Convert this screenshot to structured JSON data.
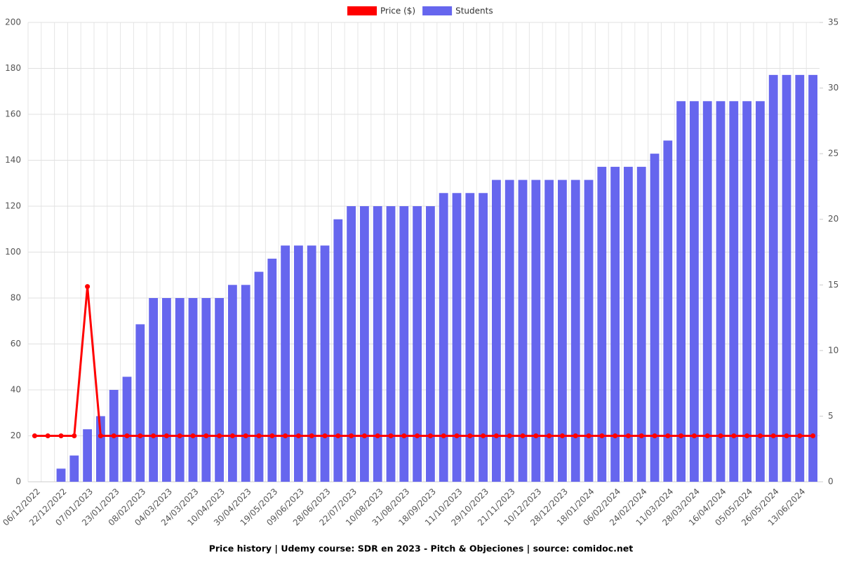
{
  "chart_data": {
    "type": "bar",
    "title": "Price history | Udemy course: SDR en 2023  -   Pitch & Objeciones | source: comidoc.net",
    "categories": [
      "06/12/2022",
      null,
      "22/12/2022",
      null,
      "07/01/2023",
      null,
      "23/01/2023",
      null,
      "08/02/2023",
      null,
      "04/03/2023",
      null,
      "24/03/2023",
      null,
      "10/04/2023",
      null,
      "30/04/2023",
      null,
      "19/05/2023",
      null,
      "09/06/2023",
      null,
      "28/06/2023",
      null,
      "22/07/2023",
      null,
      "10/08/2023",
      null,
      "31/08/2023",
      null,
      "18/09/2023",
      null,
      "11/10/2023",
      null,
      "29/10/2023",
      null,
      "21/11/2023",
      null,
      "10/12/2023",
      null,
      "28/12/2023",
      null,
      "18/01/2024",
      null,
      "06/02/2024",
      null,
      "24/02/2024",
      null,
      "11/03/2024",
      null,
      "28/03/2024",
      null,
      "16/04/2024",
      null,
      "05/05/2024",
      null,
      "26/05/2024",
      null,
      "13/06/2024",
      null
    ],
    "series": [
      {
        "name": "Price ($)",
        "type": "line",
        "color": "#ff0000",
        "axis": "y",
        "values": [
          20,
          20,
          20,
          20,
          85,
          20,
          20,
          20,
          20,
          20,
          20,
          20,
          20,
          20,
          20,
          20,
          20,
          20,
          20,
          20,
          20,
          20,
          20,
          20,
          20,
          20,
          20,
          20,
          20,
          20,
          20,
          20,
          20,
          20,
          20,
          20,
          20,
          20,
          20,
          20,
          20,
          20,
          20,
          20,
          20,
          20,
          20,
          20,
          20,
          20,
          20,
          20,
          20,
          20,
          20,
          20,
          20,
          20,
          20,
          20
        ]
      },
      {
        "name": "Students",
        "type": "bar",
        "color": "#6666ee",
        "axis": "y2",
        "values": [
          0,
          0,
          1,
          2,
          4,
          5,
          7,
          8,
          12,
          14,
          14,
          14,
          14,
          14,
          14,
          15,
          15,
          16,
          17,
          18,
          18,
          18,
          18,
          20,
          21,
          21,
          21,
          21,
          21,
          21,
          21,
          22,
          22,
          22,
          22,
          23,
          23,
          23,
          23,
          23,
          23,
          23,
          23,
          24,
          24,
          24,
          24,
          25,
          26,
          29,
          29,
          29,
          29,
          29,
          29,
          29,
          31,
          31,
          31,
          31
        ]
      }
    ],
    "ylim": [
      0,
      200
    ],
    "yticks": [
      0,
      20,
      40,
      60,
      80,
      100,
      120,
      140,
      160,
      180,
      200
    ],
    "y2lim": [
      0,
      35
    ],
    "y2ticks": [
      0,
      5,
      10,
      15,
      20,
      25,
      30,
      35
    ],
    "grid": true,
    "legend": "top"
  }
}
